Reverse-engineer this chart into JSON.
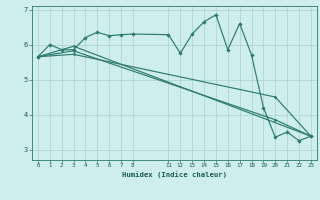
{
  "xlabel": "Humidex (Indice chaleur)",
  "xlim": [
    -0.5,
    23.5
  ],
  "ylim": [
    2.7,
    7.1
  ],
  "xticks": [
    0,
    1,
    2,
    3,
    4,
    5,
    6,
    7,
    8,
    11,
    12,
    13,
    14,
    15,
    16,
    17,
    18,
    19,
    20,
    21,
    22,
    23
  ],
  "yticks": [
    3,
    4,
    5,
    6,
    7
  ],
  "background_color": "#ceeeed",
  "line_color": "#2d7a6e",
  "grid_color": "#aed4d0",
  "lines": [
    {
      "x": [
        0,
        1,
        2,
        3,
        4,
        5,
        6,
        7,
        8,
        11,
        12,
        13,
        14,
        15,
        16,
        17,
        18,
        19,
        20,
        21,
        22,
        23
      ],
      "y": [
        5.65,
        6.0,
        5.85,
        5.85,
        6.2,
        6.35,
        6.25,
        6.28,
        6.3,
        6.28,
        5.75,
        6.3,
        6.65,
        6.85,
        5.85,
        6.6,
        5.7,
        4.2,
        3.35,
        3.5,
        3.25,
        3.38
      ]
    },
    {
      "x": [
        0,
        3,
        23
      ],
      "y": [
        5.65,
        5.95,
        3.38
      ]
    },
    {
      "x": [
        0,
        3,
        20,
        23
      ],
      "y": [
        5.65,
        5.82,
        3.85,
        3.38
      ]
    },
    {
      "x": [
        0,
        3,
        20,
        23
      ],
      "y": [
        5.65,
        5.72,
        4.5,
        3.38
      ]
    }
  ]
}
